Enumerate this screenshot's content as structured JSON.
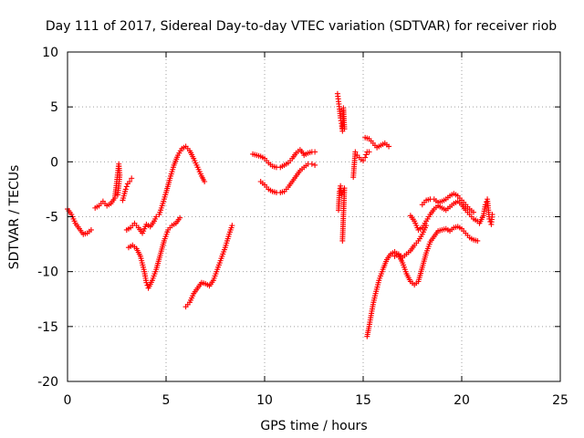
{
  "chart_data": {
    "type": "scatter",
    "title": "Day 111 of 2017, Sidereal Day-to-day VTEC variation (SDTVAR) for receiver riob",
    "xlabel": "GPS time / hours",
    "ylabel": "SDTVAR / TECUs",
    "xlim": [
      0,
      25
    ],
    "ylim": [
      -20,
      10
    ],
    "xticks": [
      "0",
      "5",
      "10",
      "15",
      "20",
      "25"
    ],
    "yticks": [
      "10",
      "5",
      "0",
      "-5",
      "-10",
      "-15",
      "-20"
    ],
    "grid": true,
    "marker": "plus",
    "color": "#ff0000",
    "series": [
      {
        "segments": [
          [
            [
              0.0,
              -4.3
            ],
            [
              0.2,
              -4.8
            ],
            [
              0.4,
              -5.6
            ],
            [
              0.6,
              -6.1
            ],
            [
              0.8,
              -6.6
            ],
            [
              1.0,
              -6.5
            ],
            [
              1.2,
              -6.2
            ]
          ],
          [
            [
              1.4,
              -4.2
            ],
            [
              1.6,
              -4.0
            ],
            [
              1.8,
              -3.6
            ],
            [
              2.0,
              -4.0
            ],
            [
              2.2,
              -3.8
            ],
            [
              2.4,
              -3.3
            ],
            [
              2.5,
              -1.8
            ],
            [
              2.6,
              -0.2
            ],
            [
              2.65,
              -1.2
            ],
            [
              2.55,
              -3.0
            ]
          ],
          [
            [
              2.8,
              -3.5
            ],
            [
              2.95,
              -2.5
            ],
            [
              3.05,
              -2.0
            ],
            [
              3.15,
              -1.8
            ],
            [
              3.25,
              -1.5
            ]
          ],
          [
            [
              3.0,
              -6.2
            ],
            [
              3.2,
              -6.0
            ],
            [
              3.4,
              -5.6
            ],
            [
              3.6,
              -6.0
            ],
            [
              3.8,
              -6.5
            ],
            [
              4.0,
              -5.7
            ],
            [
              4.2,
              -5.9
            ],
            [
              4.4,
              -5.4
            ],
            [
              4.5,
              -5.0
            ],
            [
              4.65,
              -4.8
            ],
            [
              4.8,
              -4.0
            ],
            [
              5.0,
              -2.8
            ],
            [
              5.2,
              -1.5
            ],
            [
              5.4,
              -0.3
            ],
            [
              5.6,
              0.6
            ],
            [
              5.8,
              1.2
            ],
            [
              6.0,
              1.4
            ],
            [
              6.2,
              1.0
            ],
            [
              6.4,
              0.3
            ],
            [
              6.6,
              -0.5
            ],
            [
              6.8,
              -1.3
            ],
            [
              6.95,
              -1.8
            ]
          ],
          [
            [
              3.1,
              -7.8
            ],
            [
              3.3,
              -7.6
            ],
            [
              3.5,
              -7.9
            ],
            [
              3.7,
              -8.6
            ],
            [
              3.9,
              -10.0
            ],
            [
              4.0,
              -11.0
            ],
            [
              4.1,
              -11.5
            ],
            [
              4.3,
              -10.8
            ],
            [
              4.5,
              -9.8
            ],
            [
              4.7,
              -8.5
            ],
            [
              4.9,
              -7.2
            ],
            [
              5.1,
              -6.2
            ],
            [
              5.3,
              -5.8
            ],
            [
              5.5,
              -5.6
            ],
            [
              5.7,
              -5.1
            ]
          ],
          [
            [
              6.0,
              -13.2
            ],
            [
              6.2,
              -12.8
            ],
            [
              6.4,
              -12.0
            ],
            [
              6.6,
              -11.5
            ],
            [
              6.8,
              -11.0
            ],
            [
              7.0,
              -11.1
            ],
            [
              7.2,
              -11.3
            ],
            [
              7.4,
              -10.8
            ],
            [
              7.6,
              -9.8
            ],
            [
              7.8,
              -8.8
            ],
            [
              8.0,
              -7.8
            ],
            [
              8.2,
              -6.6
            ],
            [
              8.35,
              -5.8
            ]
          ],
          [
            [
              9.4,
              0.7
            ],
            [
              9.6,
              0.6
            ],
            [
              9.8,
              0.5
            ],
            [
              10.0,
              0.3
            ],
            [
              10.2,
              -0.1
            ],
            [
              10.4,
              -0.4
            ],
            [
              10.6,
              -0.5
            ],
            [
              10.8,
              -0.5
            ],
            [
              11.0,
              -0.3
            ],
            [
              11.2,
              -0.1
            ],
            [
              11.4,
              0.3
            ],
            [
              11.6,
              0.8
            ],
            [
              11.8,
              1.1
            ],
            [
              11.95,
              0.8
            ]
          ],
          [
            [
              9.8,
              -1.8
            ],
            [
              10.0,
              -2.1
            ],
            [
              10.2,
              -2.5
            ],
            [
              10.4,
              -2.7
            ],
            [
              10.6,
              -2.8
            ],
            [
              10.8,
              -2.8
            ],
            [
              11.0,
              -2.7
            ],
            [
              11.2,
              -2.3
            ],
            [
              11.4,
              -1.8
            ],
            [
              11.6,
              -1.3
            ],
            [
              11.8,
              -0.8
            ],
            [
              12.0,
              -0.5
            ],
            [
              12.2,
              -0.2
            ],
            [
              12.4,
              -0.2
            ],
            [
              12.55,
              -0.3
            ]
          ],
          [
            [
              12.0,
              0.6
            ],
            [
              12.2,
              0.8
            ],
            [
              12.4,
              0.9
            ],
            [
              12.55,
              0.9
            ]
          ],
          [
            [
              13.7,
              6.2
            ],
            [
              13.75,
              5.5
            ],
            [
              13.8,
              4.8
            ],
            [
              13.85,
              4.0
            ],
            [
              13.9,
              3.5
            ],
            [
              13.95,
              2.8
            ],
            [
              14.0,
              4.9
            ],
            [
              14.05,
              3.0
            ]
          ],
          [
            [
              13.75,
              -4.4
            ],
            [
              13.8,
              -2.7
            ],
            [
              13.85,
              -2.2
            ],
            [
              13.9,
              -3.0
            ],
            [
              14.0,
              -2.6
            ],
            [
              14.05,
              -2.4
            ],
            [
              13.95,
              -7.2
            ]
          ],
          [
            [
              14.5,
              -1.4
            ],
            [
              14.6,
              0.9
            ],
            [
              14.7,
              0.6
            ],
            [
              14.8,
              0.4
            ],
            [
              14.9,
              0.2
            ],
            [
              15.0,
              0.1
            ],
            [
              15.1,
              0.4
            ],
            [
              15.2,
              0.9
            ],
            [
              15.3,
              0.9
            ]
          ],
          [
            [
              15.1,
              2.2
            ],
            [
              15.3,
              2.1
            ],
            [
              15.5,
              1.7
            ],
            [
              15.7,
              1.3
            ],
            [
              15.9,
              1.5
            ],
            [
              16.1,
              1.7
            ],
            [
              16.3,
              1.4
            ]
          ],
          [
            [
              15.2,
              -15.9
            ],
            [
              15.3,
              -15.0
            ],
            [
              15.4,
              -14.0
            ],
            [
              15.5,
              -13.0
            ],
            [
              15.6,
              -12.2
            ],
            [
              15.8,
              -10.8
            ],
            [
              16.0,
              -9.8
            ],
            [
              16.2,
              -8.9
            ],
            [
              16.4,
              -8.4
            ],
            [
              16.6,
              -8.2
            ],
            [
              16.8,
              -8.5
            ],
            [
              17.0,
              -9.2
            ],
            [
              17.2,
              -10.2
            ],
            [
              17.4,
              -10.9
            ],
            [
              17.6,
              -11.2
            ],
            [
              17.8,
              -10.9
            ],
            [
              18.0,
              -9.6
            ],
            [
              18.2,
              -8.3
            ],
            [
              18.4,
              -7.3
            ],
            [
              18.6,
              -6.8
            ],
            [
              18.8,
              -6.3
            ],
            [
              19.0,
              -6.2
            ],
            [
              19.2,
              -6.1
            ],
            [
              19.4,
              -6.3
            ],
            [
              19.6,
              -6.0
            ],
            [
              19.8,
              -5.9
            ],
            [
              20.0,
              -6.1
            ],
            [
              20.2,
              -6.5
            ],
            [
              20.4,
              -6.9
            ],
            [
              20.6,
              -7.1
            ],
            [
              20.8,
              -7.2
            ]
          ],
          [
            [
              16.6,
              -8.6
            ],
            [
              16.8,
              -8.4
            ],
            [
              17.0,
              -8.7
            ],
            [
              17.2,
              -8.4
            ],
            [
              17.4,
              -8.1
            ],
            [
              17.6,
              -7.6
            ],
            [
              17.8,
              -7.2
            ],
            [
              18.0,
              -6.6
            ],
            [
              18.2,
              -5.8
            ]
          ],
          [
            [
              17.4,
              -4.9
            ],
            [
              17.6,
              -5.4
            ],
            [
              17.8,
              -6.2
            ],
            [
              18.0,
              -6.0
            ],
            [
              18.2,
              -5.4
            ],
            [
              18.4,
              -4.8
            ],
            [
              18.6,
              -4.3
            ],
            [
              18.8,
              -4.0
            ],
            [
              19.0,
              -4.2
            ],
            [
              19.2,
              -4.4
            ],
            [
              19.4,
              -4.1
            ],
            [
              19.6,
              -3.8
            ],
            [
              19.8,
              -3.6
            ],
            [
              20.0,
              -3.9
            ],
            [
              20.2,
              -4.4
            ],
            [
              20.4,
              -4.8
            ],
            [
              20.6,
              -5.2
            ],
            [
              20.8,
              -5.4
            ]
          ],
          [
            [
              18.0,
              -3.9
            ],
            [
              18.2,
              -3.5
            ],
            [
              18.4,
              -3.4
            ],
            [
              18.6,
              -3.4
            ],
            [
              18.8,
              -3.7
            ],
            [
              19.0,
              -3.6
            ],
            [
              19.2,
              -3.4
            ],
            [
              19.4,
              -3.1
            ],
            [
              19.6,
              -2.9
            ],
            [
              19.8,
              -3.1
            ],
            [
              20.0,
              -3.5
            ],
            [
              20.2,
              -3.9
            ],
            [
              20.4,
              -4.3
            ],
            [
              20.6,
              -4.6
            ]
          ],
          [
            [
              20.9,
              -5.6
            ],
            [
              21.1,
              -4.9
            ],
            [
              21.2,
              -3.9
            ],
            [
              21.3,
              -3.4
            ],
            [
              21.4,
              -5.2
            ],
            [
              21.5,
              -5.7
            ],
            [
              21.55,
              -4.8
            ]
          ]
        ]
      }
    ]
  }
}
